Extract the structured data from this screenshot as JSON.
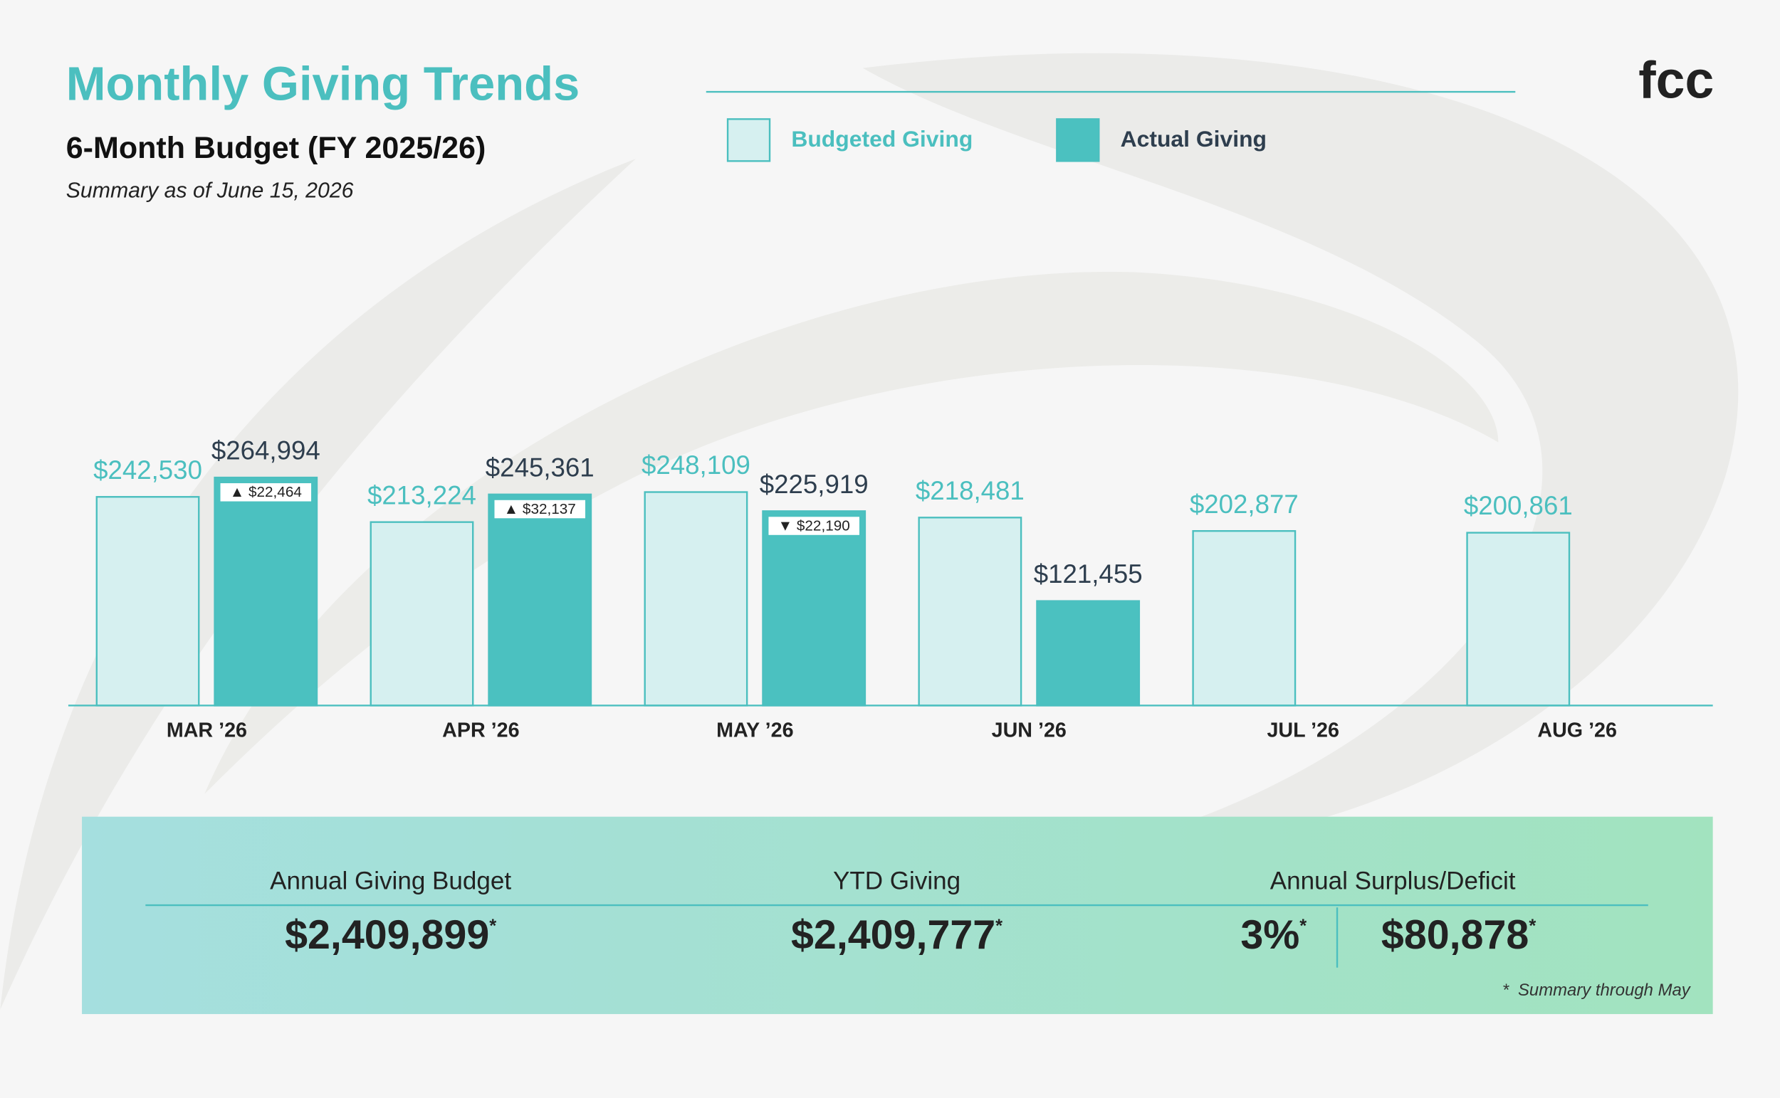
{
  "title": "Monthly Giving Trends",
  "subtitle": "6-Month Budget (FY 2025/26)",
  "note": "Summary as of June 15, 2026",
  "logo": "fcc",
  "chart_data": {
    "type": "bar",
    "categories": [
      "MAR ’26",
      "APR ’26",
      "MAY ’26",
      "JUN ’26",
      "JUL ’26",
      "AUG ’26"
    ],
    "series": [
      {
        "name": "Budgeted Giving",
        "color": "#d6f0f0",
        "values": [
          242530,
          213224,
          248109,
          218481,
          202877,
          200861
        ],
        "value_labels": [
          "$242,530",
          "$213,224",
          "$248,109",
          "$218,481",
          "$202,877",
          "$200,861"
        ]
      },
      {
        "name": "Actual Giving",
        "color": "#4bc1c0",
        "values": [
          264994,
          245361,
          225919,
          121455,
          null,
          null
        ],
        "value_labels": [
          "$264,994",
          "$245,361",
          "$225,919",
          "$121,455",
          null,
          null
        ]
      }
    ],
    "variance_labels": [
      "▲ $22,464",
      "▲ $32,137",
      "▼ $22,190",
      null,
      null,
      null
    ]
  },
  "summary": {
    "footnote_mark": "*",
    "footnote": "Summary through May",
    "items": [
      {
        "label": "Annual Giving Budget",
        "value": "$2,409,899"
      },
      {
        "label": "YTD Giving",
        "value": "$2,409,777"
      },
      {
        "label": "Annual Surplus/Deficit",
        "value": "3%",
        "value2": "$80,878"
      }
    ]
  }
}
